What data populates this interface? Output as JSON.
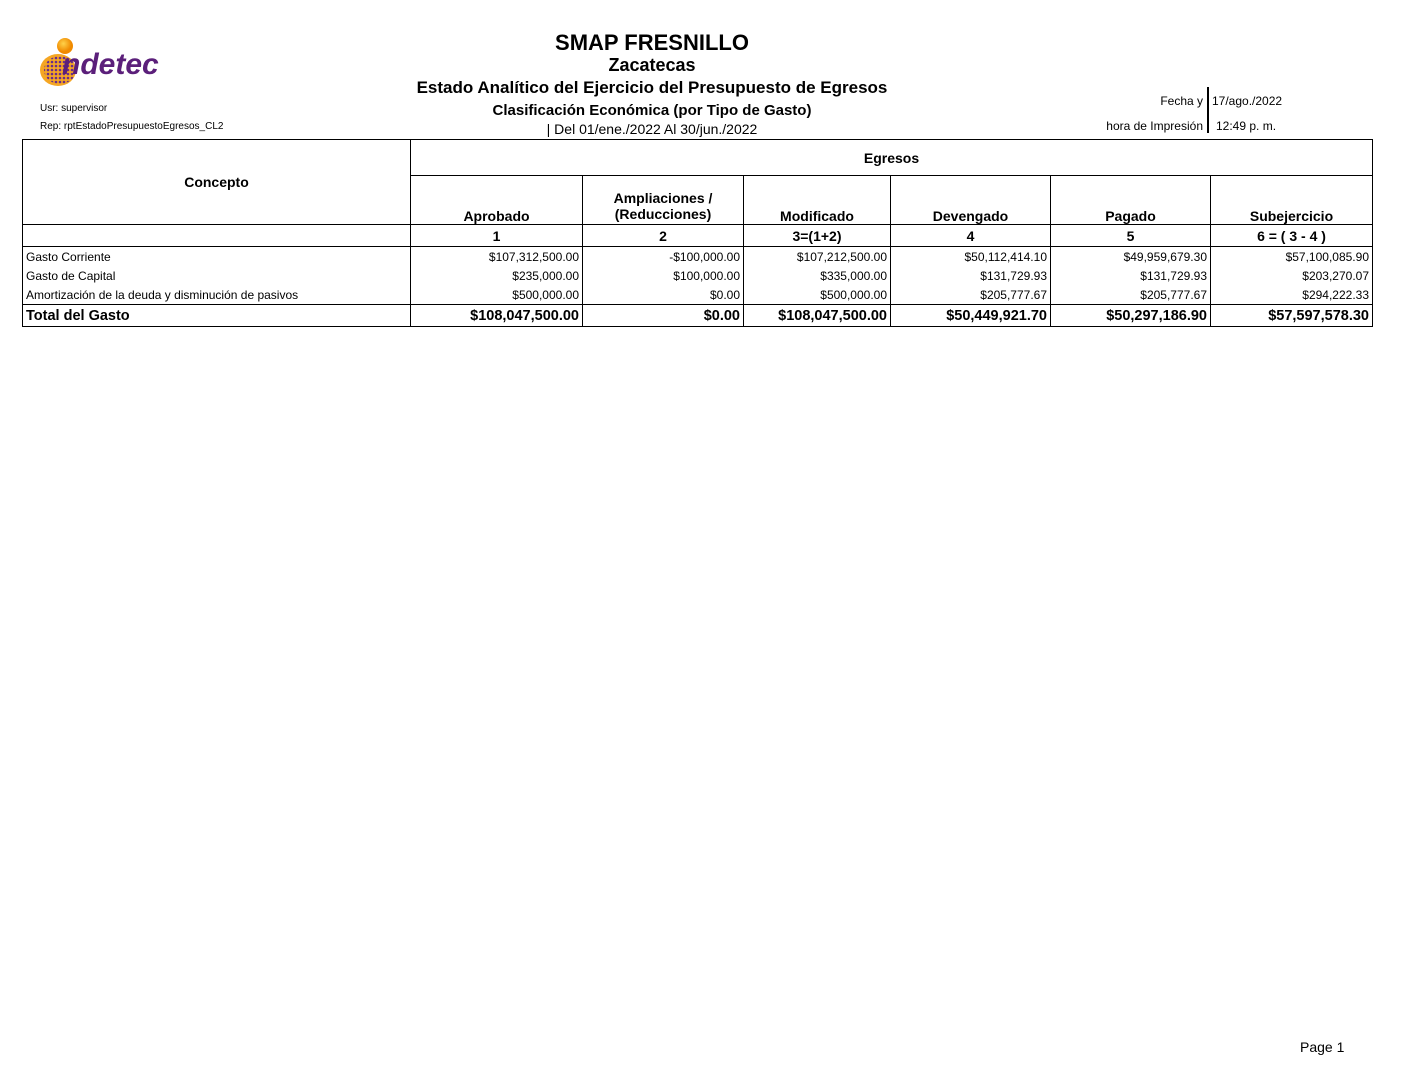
{
  "header": {
    "logo_text": "indetec",
    "entity": "SMAP FRESNILLO",
    "state": "Zacatecas",
    "report_title": "Estado Analítico del Ejercicio del Presupuesto de Egresos",
    "classification": "Clasificación Económica (por Tipo de Gasto)",
    "period": "| Del 01/ene./2022 Al 30/jun./2022",
    "user": "Usr: supervisor",
    "report_id": "Rep: rptEstadoPresupuestoEgresos_CL2",
    "date_label": "Fecha y",
    "date_value": "17/ago./2022",
    "time_label": "hora de Impresión",
    "time_value": "12:49 p. m."
  },
  "table": {
    "concept_header": "Concepto",
    "group_header": "Egresos",
    "columns": [
      "Aprobado",
      "Ampliaciones / (Reducciones)",
      "Modificado",
      "Devengado",
      "Pagado",
      "Subejercicio"
    ],
    "column_numbers": [
      "1",
      "2",
      "3=(1+2)",
      "4",
      "5",
      "6 = ( 3 - 4 )"
    ],
    "rows": [
      {
        "concept": "Gasto Corriente",
        "values": [
          "$107,312,500.00",
          "-$100,000.00",
          "$107,212,500.00",
          "$50,112,414.10",
          "$49,959,679.30",
          "$57,100,085.90"
        ]
      },
      {
        "concept": "Gasto de Capital",
        "values": [
          "$235,000.00",
          "$100,000.00",
          "$335,000.00",
          "$131,729.93",
          "$131,729.93",
          "$203,270.07"
        ]
      },
      {
        "concept": "Amortización de la deuda y disminución de pasivos",
        "values": [
          "$500,000.00",
          "$0.00",
          "$500,000.00",
          "$205,777.67",
          "$205,777.67",
          "$294,222.33"
        ]
      }
    ],
    "total": {
      "concept": "Total del Gasto",
      "values": [
        "$108,047,500.00",
        "$0.00",
        "$108,047,500.00",
        "$50,449,921.70",
        "$50,297,186.90",
        "$57,597,578.30"
      ]
    }
  },
  "footer": {
    "page": "Page 1"
  },
  "colors": {
    "logo_purple": "#5b1f7a",
    "logo_orange": "#f39200"
  }
}
